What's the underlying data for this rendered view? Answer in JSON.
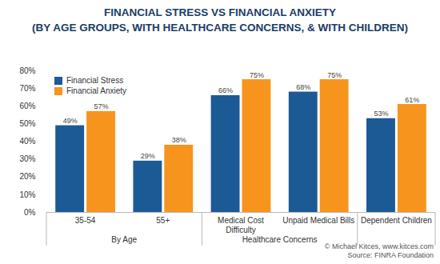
{
  "chart_data": {
    "type": "bar",
    "title": "FINANCIAL STRESS VS FINANCIAL ANXIETY",
    "subtitle": "(BY AGE GROUPS, WITH HEALTHCARE CONCERNS, & WITH CHILDREN)",
    "categories": [
      "35-54",
      "55+",
      "Medical Cost Difficulty",
      "Unpaid Medical Bills",
      "Dependent Children"
    ],
    "category_groups": [
      {
        "label": "By Age",
        "categories": [
          "35-54",
          "55+"
        ]
      },
      {
        "label": "Healthcare Concerns",
        "categories": [
          "Medical Cost Difficulty",
          "Unpaid Medical Bills"
        ]
      }
    ],
    "series": [
      {
        "name": "Financial Stress",
        "color": "#1c5a96",
        "values": [
          49,
          29,
          66,
          68,
          53
        ],
        "value_labels": [
          "49%",
          "29%",
          "66%",
          "68%",
          "53%"
        ]
      },
      {
        "name": "Financial Anxiety",
        "color": "#f7941d",
        "values": [
          57,
          38,
          75,
          75,
          61
        ],
        "value_labels": [
          "57%",
          "38%",
          "75%",
          "75%",
          "61%"
        ]
      }
    ],
    "ylim": [
      0,
      80
    ],
    "yticks": [
      {
        "value": 0,
        "label": "0%"
      },
      {
        "value": 10,
        "label": "10%"
      },
      {
        "value": 20,
        "label": "20%"
      },
      {
        "value": 30,
        "label": "30%"
      },
      {
        "value": 40,
        "label": "40%"
      },
      {
        "value": 50,
        "label": "50%"
      },
      {
        "value": 60,
        "label": "60%"
      },
      {
        "value": 70,
        "label": "70%"
      },
      {
        "value": 80,
        "label": "80%"
      }
    ],
    "legend": "upper left",
    "data_labels": true,
    "caption": [
      "© Michael Kitces, www.kitces.com",
      "Source: FINRA Foundation"
    ]
  }
}
